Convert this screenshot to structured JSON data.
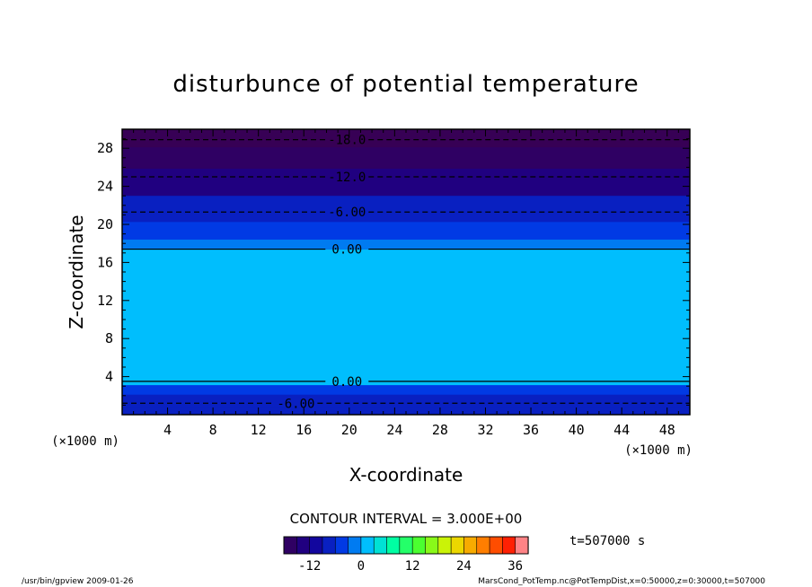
{
  "chart_data": {
    "type": "heatmap",
    "title": "disturbunce of potential temperature",
    "xlabel": "X-coordinate",
    "ylabel": "Z-coordinate",
    "x_units": "(×1000 m)",
    "y_units": "(×1000 m)",
    "xlim": [
      0,
      50
    ],
    "ylim": [
      0,
      30
    ],
    "x_ticks": [
      "4",
      "8",
      "12",
      "16",
      "20",
      "24",
      "28",
      "32",
      "36",
      "40",
      "44",
      "48"
    ],
    "y_ticks": [
      "4",
      "8",
      "12",
      "16",
      "20",
      "24",
      "28"
    ],
    "field_profile": [
      {
        "z": 0.2,
        "value": -7.5
      },
      {
        "z": 1.5,
        "value": -6.5
      },
      {
        "z": 2.8,
        "value": -3.5
      },
      {
        "z": 3.5,
        "value": 0.5
      },
      {
        "z": 17.2,
        "value": 0.5
      },
      {
        "z": 17.6,
        "value": -1.5
      },
      {
        "z": 19.3,
        "value": -3.5
      },
      {
        "z": 21.3,
        "value": -6.5
      },
      {
        "z": 24.8,
        "value": -12.5
      },
      {
        "z": 27.0,
        "value": -16.0
      },
      {
        "z": 29.3,
        "value": -19.5
      }
    ],
    "contours": [
      {
        "label": "-18.0",
        "z": 28.9,
        "style": "dashed"
      },
      {
        "label": "-12.0",
        "z": 25.0,
        "style": "dashed"
      },
      {
        "label": "-6.00",
        "z": 21.3,
        "style": "dashed"
      },
      {
        "label": "0.00",
        "z": 17.4,
        "style": "solid"
      },
      {
        "label": "0.00",
        "z": 3.5,
        "style": "solid"
      },
      {
        "label": "-6.00",
        "z": 1.2,
        "style": "dashed"
      }
    ],
    "colorbar": {
      "min": -18,
      "max": 39,
      "step": 3,
      "ticks": [
        "-12",
        "0",
        "12",
        "24",
        "36"
      ]
    }
  },
  "footer": {
    "contour_interval": "CONTOUR INTERVAL = 3.000E+00",
    "time": "t=507000 s",
    "program": "/usr/bin/gpview  2009-01-26",
    "source": "MarsCond_PotTemp.nc@PotTempDist,x=0:50000,z=0:30000,t=507000"
  }
}
